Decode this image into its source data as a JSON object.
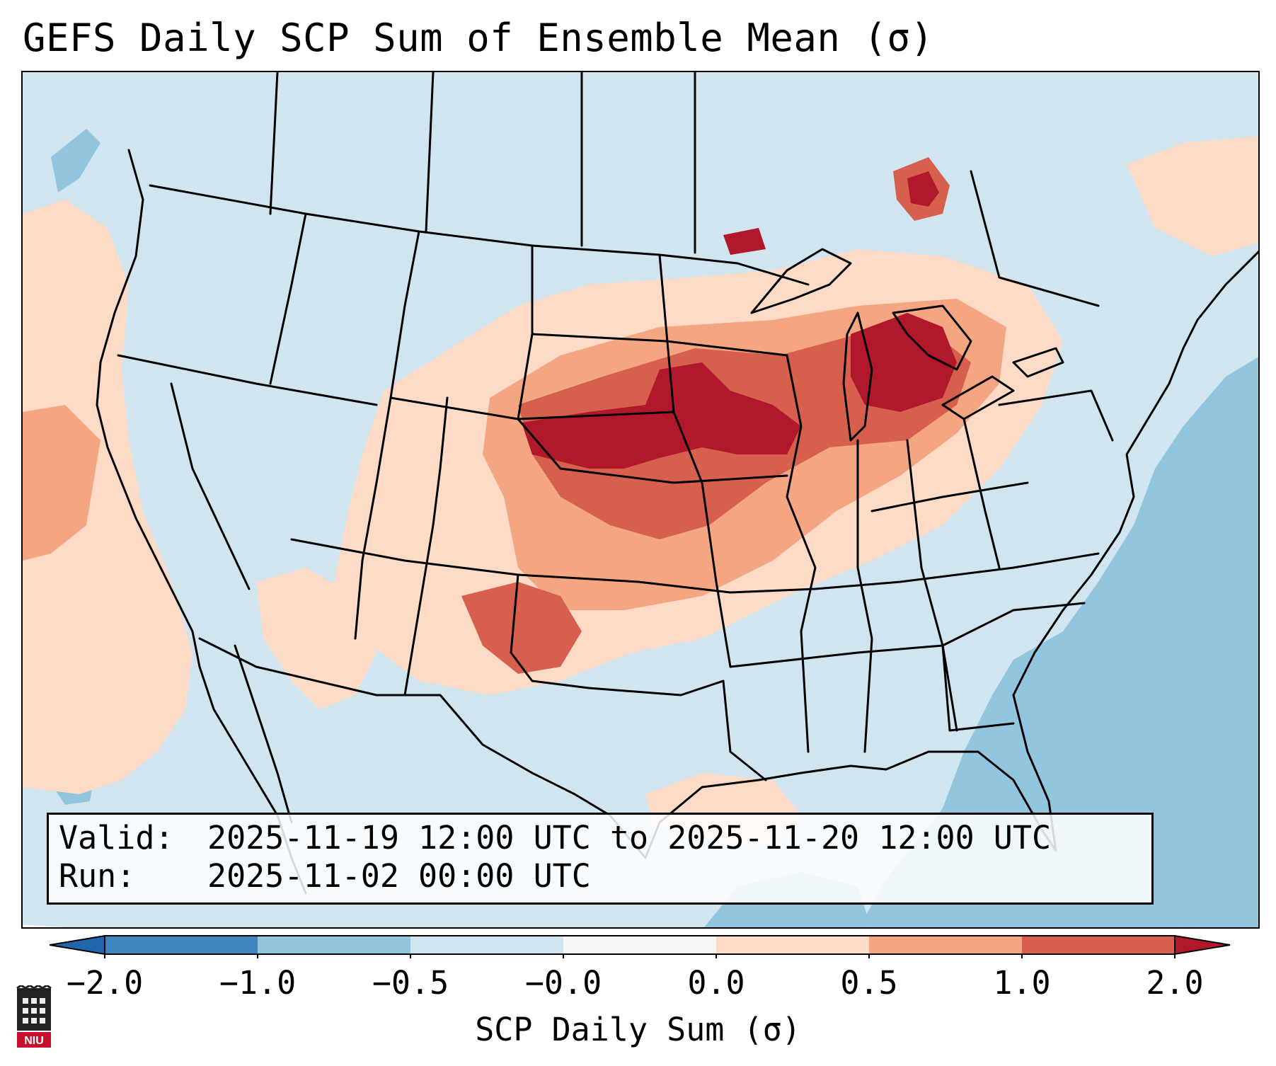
{
  "title": "GEFS Daily SCP Sum of Ensemble Mean (σ)",
  "info": {
    "valid_label": "Valid:",
    "valid_value": "2025-11-19 12:00 UTC to 2025-11-20 12:00 UTC",
    "run_label": "Run:",
    "run_value": "2025-11-02 00:00 UTC"
  },
  "colorbar": {
    "label": "SCP Daily Sum (σ)",
    "ticks": [
      "−2.0",
      "−1.0",
      "−0.5",
      "−0.0",
      "0.0",
      "0.5",
      "1.0",
      "2.0"
    ],
    "colors": [
      "#3f86c0",
      "#92c5de",
      "#d1e5f0",
      "#f7f7f7",
      "#fddbc7",
      "#f4a582",
      "#d6604d",
      "#b2182b"
    ],
    "under_color": "#2166ac",
    "over_color": "#b2182b"
  },
  "map": {
    "background_color": "#d1e5f0",
    "region": "Continental United States"
  },
  "logo": {
    "text": "NIU",
    "color": "#c8102e"
  }
}
